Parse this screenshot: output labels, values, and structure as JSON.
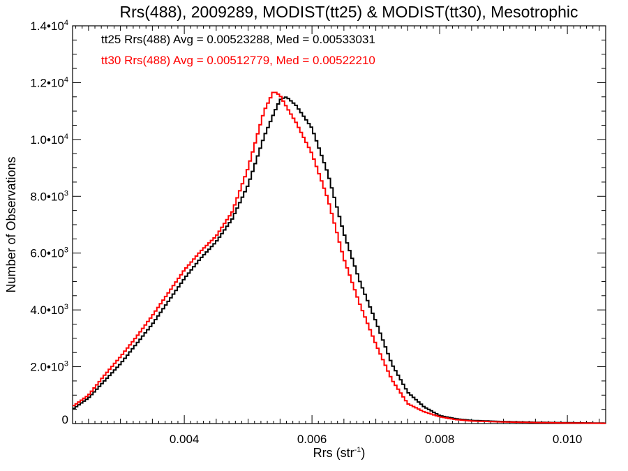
{
  "chart_data": {
    "type": "line",
    "title": "Rrs(488), 2009289, MODIST(tt25) & MODIST(tt30), Mesotrophic",
    "xlabel": "Rrs (str",
    "xlabel_sup": "-1",
    "xlabel_close": ")",
    "ylabel": "Number of Observations",
    "xlim": [
      0.00225,
      0.0106
    ],
    "ylim": [
      0,
      14000
    ],
    "x_ticks": [
      0.004,
      0.006,
      0.008,
      0.01
    ],
    "x_tick_labels": [
      "0.004",
      "0.006",
      "0.008",
      "0.010"
    ],
    "y_ticks": [
      0,
      2000,
      4000,
      6000,
      8000,
      10000,
      12000,
      14000
    ],
    "y_tick_labels": [
      {
        "base": "0",
        "exp": ""
      },
      {
        "base": "2.0•10",
        "exp": "3"
      },
      {
        "base": "4.0•10",
        "exp": "3"
      },
      {
        "base": "6.0•10",
        "exp": "3"
      },
      {
        "base": "8.0•10",
        "exp": "3"
      },
      {
        "base": "1.0•10",
        "exp": "4"
      },
      {
        "base": "1.2•10",
        "exp": "4"
      },
      {
        "base": "1.4•10",
        "exp": "4"
      }
    ],
    "x": [
      0.00225,
      0.0025,
      0.00275,
      0.003,
      0.00325,
      0.0035,
      0.00375,
      0.004,
      0.00425,
      0.0045,
      0.00475,
      0.005,
      0.00525,
      0.0054,
      0.0055,
      0.0056,
      0.00575,
      0.006,
      0.00625,
      0.0065,
      0.00675,
      0.007,
      0.00725,
      0.0075,
      0.00775,
      0.008,
      0.00825,
      0.0085,
      0.009,
      0.0095,
      0.01,
      0.0106
    ],
    "series": [
      {
        "name": "tt25 Rrs(488) Avg = 0.00523288, Med = 0.00533031",
        "color": "#000000",
        "values": [
          500,
          900,
          1500,
          2100,
          2800,
          3500,
          4300,
          5100,
          5800,
          6400,
          7200,
          8400,
          10100,
          10900,
          11400,
          11500,
          11200,
          10400,
          8800,
          6700,
          5000,
          3600,
          2100,
          1100,
          600,
          280,
          170,
          110,
          70,
          45,
          30,
          15
        ]
      },
      {
        "name": "tt30 Rrs(488) Avg = 0.00512779, Med = 0.00522210",
        "color": "#ff0000",
        "values": [
          600,
          1000,
          1700,
          2350,
          3050,
          3800,
          4600,
          5400,
          6050,
          6600,
          7450,
          9000,
          11000,
          11700,
          11550,
          11150,
          10600,
          9500,
          7900,
          5800,
          4200,
          2800,
          1550,
          700,
          420,
          240,
          140,
          90,
          55,
          35,
          20,
          10
        ]
      }
    ],
    "legend_position": "top-left",
    "grid": false
  }
}
